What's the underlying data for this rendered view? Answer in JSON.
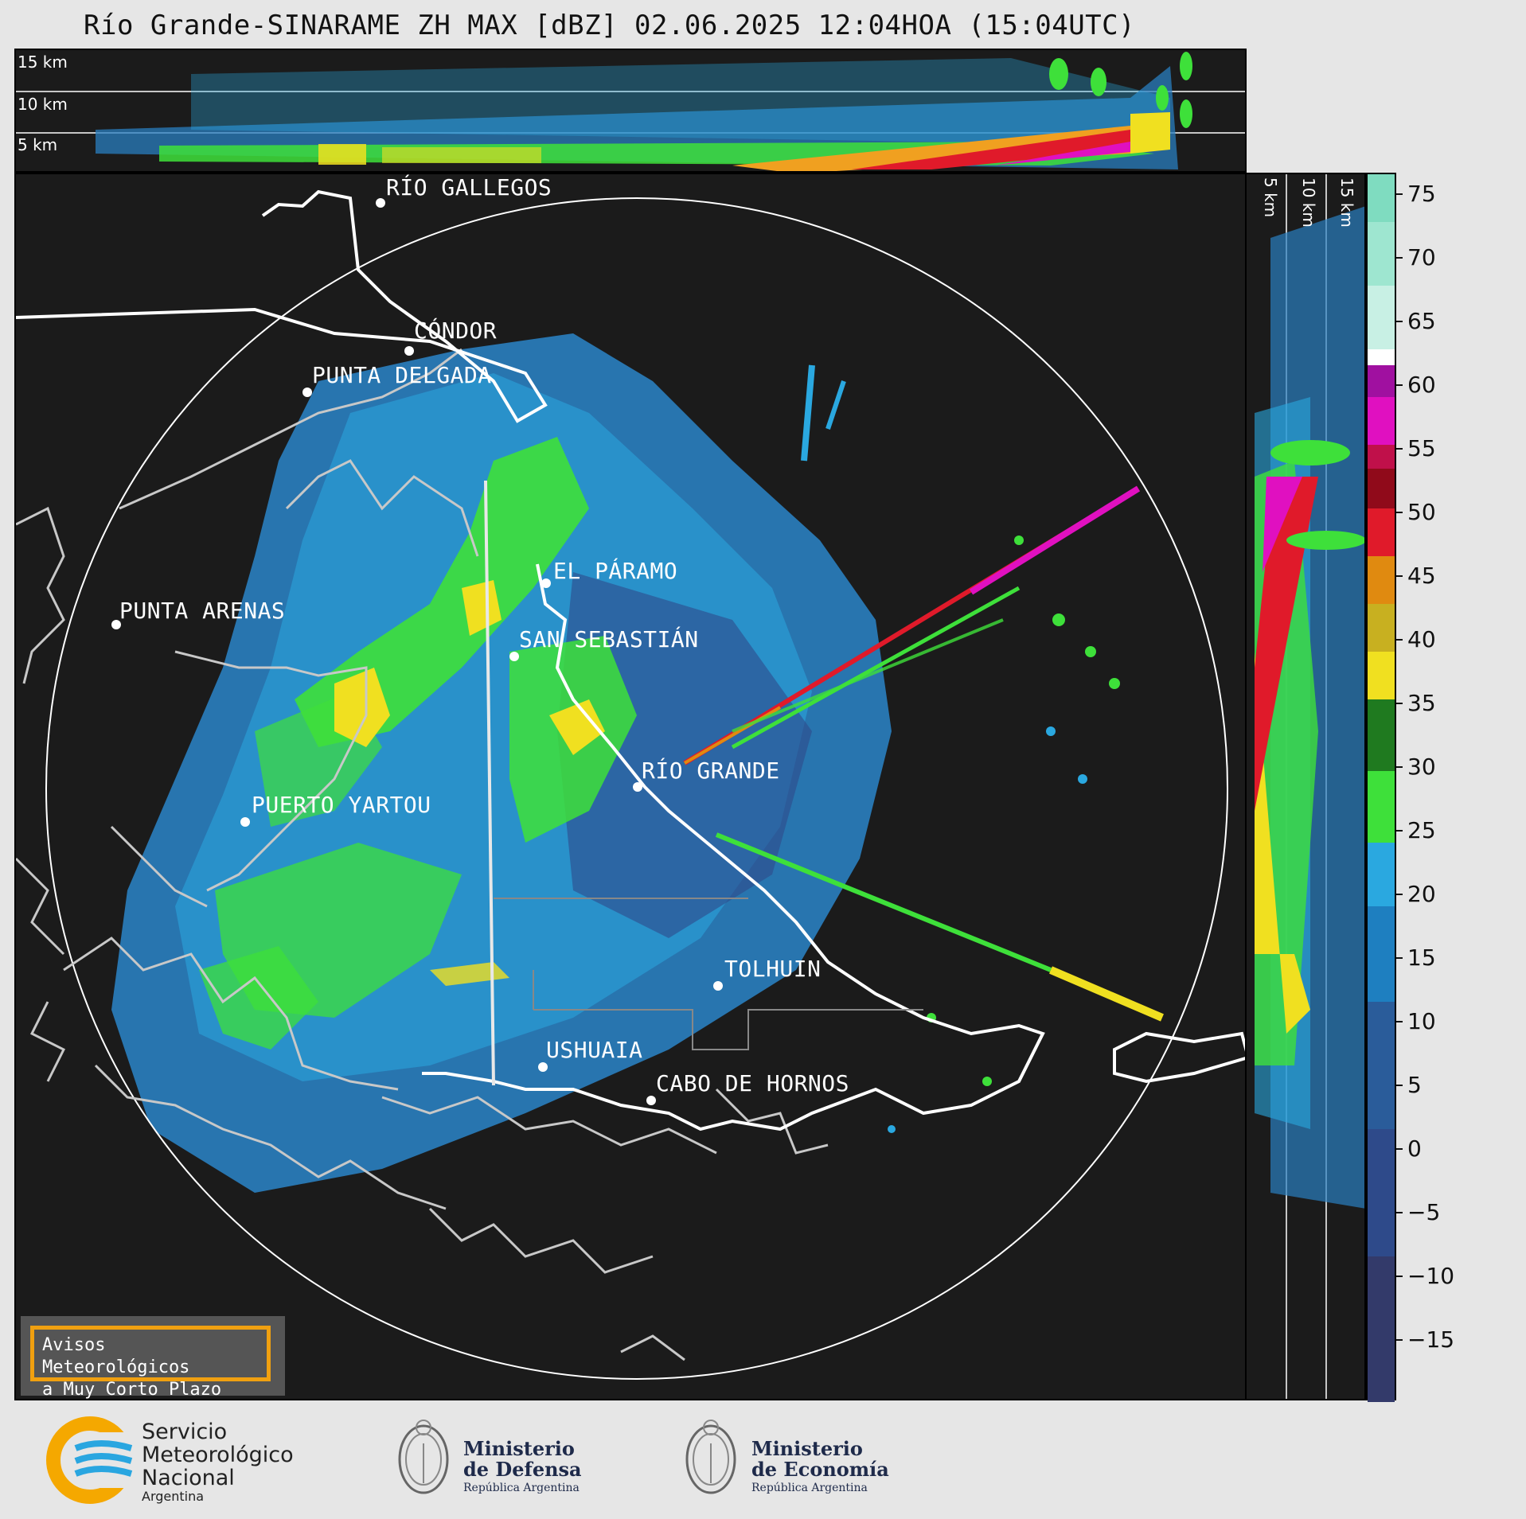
{
  "title": "Río Grande-SINARAME ZH MAX [dBZ] 02.06.2025 12:04HOA (15:04UTC)",
  "top_panel": {
    "height_labels": [
      "15 km",
      "10 km",
      "5 km"
    ]
  },
  "side_panel": {
    "height_labels": [
      "5 km",
      "10 km",
      "15 km"
    ]
  },
  "cities": [
    {
      "name": "RÍO GALLEGOS"
    },
    {
      "name": "CÓNDOR"
    },
    {
      "name": "PUNTA DELGADA"
    },
    {
      "name": "EL PÁRAMO"
    },
    {
      "name": "PUNTA ARENAS"
    },
    {
      "name": "SAN SEBASTIÁN"
    },
    {
      "name": "RÍO GRANDE"
    },
    {
      "name": "PUERTO YARTOU"
    },
    {
      "name": "TOLHUIN"
    },
    {
      "name": "USHUAIA"
    },
    {
      "name": "CABO DE HORNOS"
    }
  ],
  "colorbar": {
    "ticks": [
      "75",
      "70",
      "65",
      "60",
      "55",
      "50",
      "45",
      "40",
      "35",
      "30",
      "25",
      "20",
      "15",
      "10",
      "5",
      "0",
      "−5",
      "−10",
      "−15"
    ],
    "colors": {
      "light_blue": "#2aa8e0",
      "blue": "#1e7fc0",
      "dark_blue": "#2e4a8a",
      "green": "#3ee03a",
      "dark_green": "#1f7a1f",
      "yellow": "#f0e020",
      "orange": "#e08a10",
      "red": "#e01a2a",
      "magenta": "#e010c0",
      "teal": "#80e0c0"
    }
  },
  "warning_box": {
    "line1": "Avisos Meteorológicos",
    "line2": "a Muy Corto Plazo"
  },
  "logos": {
    "smn": {
      "line1": "Servicio",
      "line2": "Meteorológico",
      "line3": "Nacional",
      "line4": "Argentina"
    },
    "defensa": {
      "line1": "Ministerio",
      "line2": "de Defensa",
      "sub": "República Argentina"
    },
    "economia": {
      "line1": "Ministerio",
      "line2": "de Economía",
      "sub": "República Argentina"
    }
  }
}
